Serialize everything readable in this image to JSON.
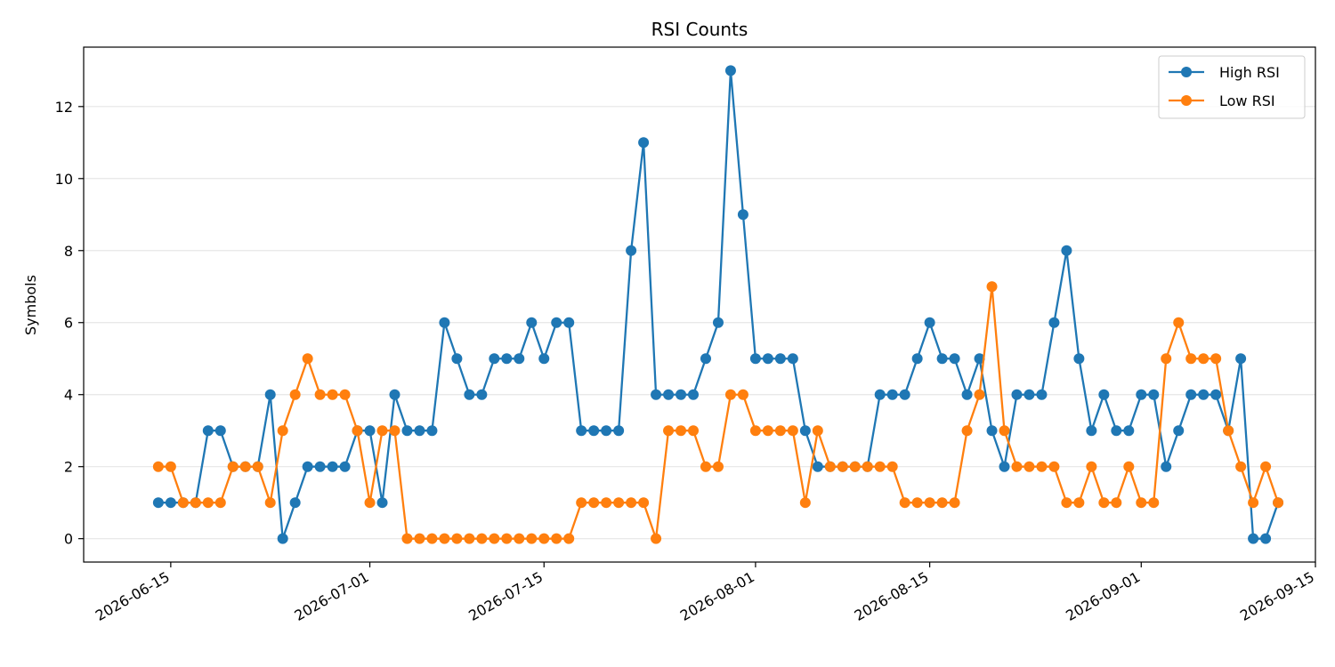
{
  "chart_data": {
    "type": "line",
    "title": "RSI Counts",
    "xlabel": "",
    "ylabel": "Symbols",
    "x_start": "2026-06-14",
    "x_ticks": [
      "2026-06-15",
      "2026-07-01",
      "2026-07-15",
      "2026-08-01",
      "2026-08-15",
      "2026-09-01",
      "2026-09-15"
    ],
    "xlim": [
      "2026-06-08",
      "2026-09-15"
    ],
    "y_ticks": [
      0,
      2,
      4,
      6,
      8,
      10,
      12
    ],
    "ylim": [
      -0.65,
      13.65
    ],
    "grid": "horizontal",
    "legend_position": "top-right",
    "series": [
      {
        "name": "High RSI",
        "color": "#1f77b4",
        "values": [
          1,
          1,
          1,
          1,
          3,
          3,
          2,
          2,
          2,
          4,
          0,
          1,
          2,
          2,
          2,
          2,
          3,
          3,
          1,
          4,
          3,
          3,
          3,
          6,
          5,
          4,
          4,
          5,
          5,
          5,
          6,
          5,
          6,
          6,
          3,
          3,
          3,
          3,
          8,
          11,
          4,
          4,
          4,
          4,
          5,
          6,
          13,
          9,
          5,
          5,
          5,
          5,
          3,
          2,
          2,
          2,
          2,
          2,
          4,
          4,
          4,
          5,
          6,
          5,
          5,
          4,
          5,
          3,
          2,
          4,
          4,
          4,
          6,
          8,
          5,
          3,
          4,
          3,
          3,
          4,
          4,
          2,
          3,
          4,
          4,
          4,
          3,
          5,
          0,
          0,
          1
        ]
      },
      {
        "name": "Low RSI",
        "color": "#ff7f0e",
        "values": [
          2,
          2,
          1,
          1,
          1,
          1,
          2,
          2,
          2,
          1,
          3,
          4,
          5,
          4,
          4,
          4,
          3,
          1,
          3,
          3,
          0,
          0,
          0,
          0,
          0,
          0,
          0,
          0,
          0,
          0,
          0,
          0,
          0,
          0,
          1,
          1,
          1,
          1,
          1,
          1,
          0,
          3,
          3,
          3,
          2,
          2,
          4,
          4,
          3,
          3,
          3,
          3,
          1,
          3,
          2,
          2,
          2,
          2,
          2,
          2,
          1,
          1,
          1,
          1,
          1,
          3,
          4,
          7,
          3,
          2,
          2,
          2,
          2,
          1,
          1,
          2,
          1,
          1,
          2,
          1,
          1,
          5,
          6,
          5,
          5,
          5,
          3,
          2,
          1,
          2,
          1
        ]
      }
    ]
  }
}
